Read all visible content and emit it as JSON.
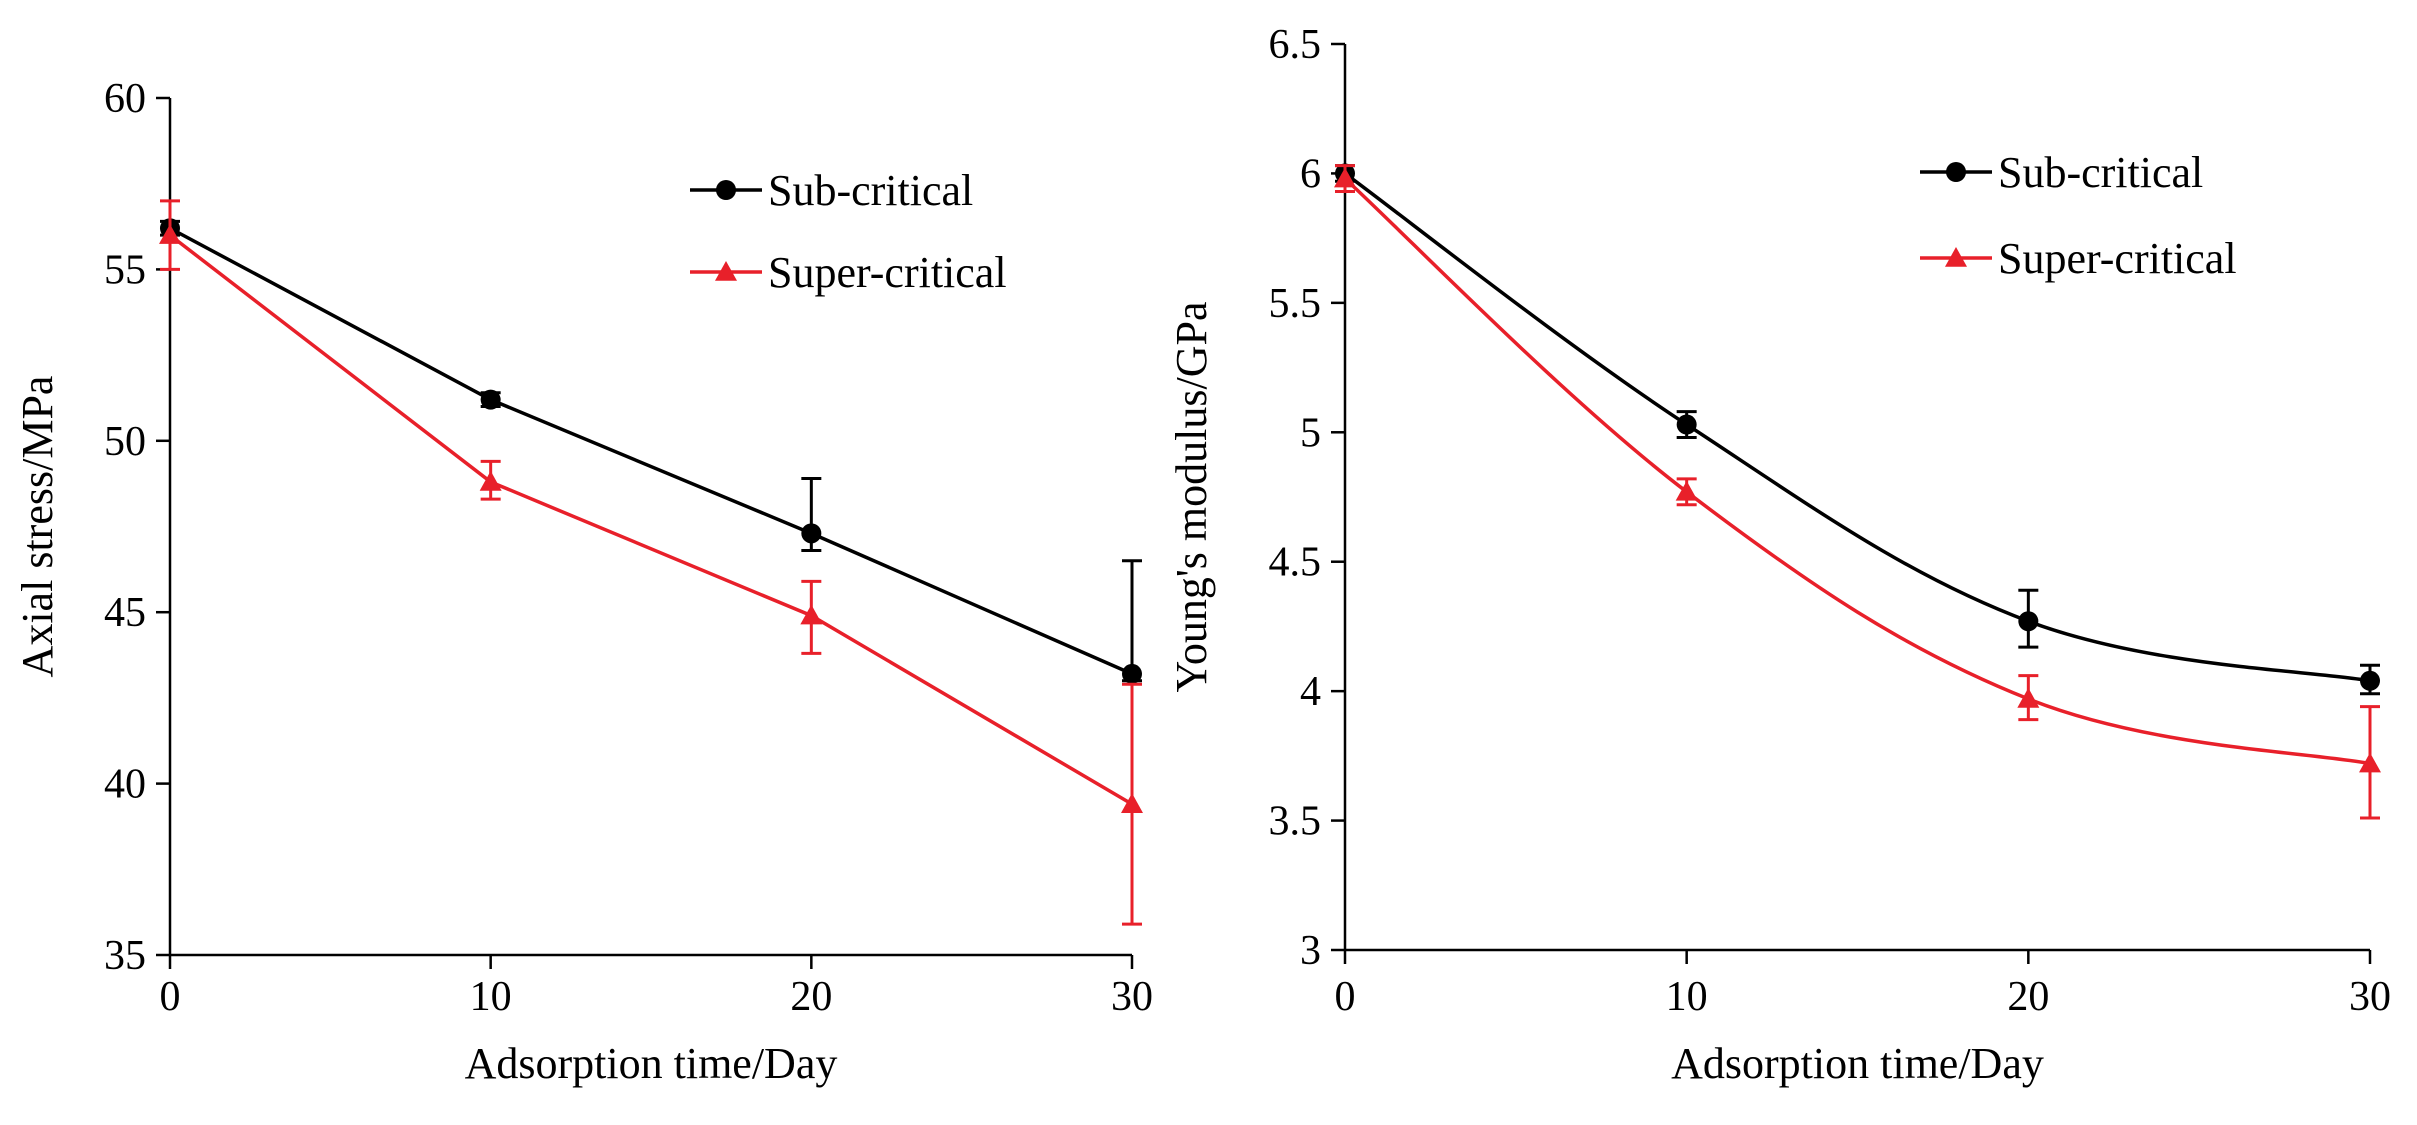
{
  "chart_data": [
    {
      "type": "line",
      "title": "",
      "xlabel": "Adsorption time/Day",
      "ylabel": "Axial stress/MPa",
      "x": [
        0,
        10,
        20,
        30
      ],
      "xticks": [
        0,
        10,
        20,
        30
      ],
      "xtick_labels": [
        "0",
        "10",
        "20",
        "30"
      ],
      "xlim": [
        0,
        30
      ],
      "ylim": [
        35,
        60
      ],
      "yticks": [
        35,
        40,
        45,
        50,
        55,
        60
      ],
      "ytick_labels": [
        "35",
        "40",
        "45",
        "50",
        "55",
        "60"
      ],
      "grid": false,
      "legend_position": "top-right",
      "curve": "linear",
      "series": [
        {
          "name": "Sub-critical",
          "color": "#000000",
          "marker": "circle",
          "values": [
            56.2,
            51.2,
            47.3,
            43.2
          ],
          "err_low": [
            0.2,
            0.2,
            0.5,
            0.2
          ],
          "err_high": [
            0.2,
            0.2,
            1.6,
            3.3
          ]
        },
        {
          "name": "Super-critical",
          "color": "#e8202a",
          "marker": "triangle",
          "values": [
            56.0,
            48.8,
            44.9,
            39.4
          ],
          "err_low": [
            1.0,
            0.5,
            1.1,
            3.5
          ],
          "err_high": [
            1.0,
            0.6,
            1.0,
            3.5
          ]
        }
      ]
    },
    {
      "type": "line",
      "title": "",
      "xlabel": "Adsorption time/Day",
      "ylabel": "Young's modulus/GPa",
      "x": [
        0,
        10,
        20,
        30
      ],
      "xticks": [
        0,
        10,
        20,
        30
      ],
      "xtick_labels": [
        "0",
        "10",
        "20",
        "30"
      ],
      "xlim": [
        0,
        30
      ],
      "ylim": [
        3,
        6.5
      ],
      "yticks": [
        3,
        3.5,
        4,
        4.5,
        5,
        5.5,
        6,
        6.5
      ],
      "ytick_labels": [
        "3",
        "3.5",
        "4",
        "4.5",
        "5",
        "5.5",
        "6",
        "6.5"
      ],
      "grid": false,
      "legend_position": "top-right",
      "curve": "smooth",
      "series": [
        {
          "name": "Sub-critical",
          "color": "#000000",
          "marker": "circle",
          "values": [
            6.0,
            5.03,
            4.27,
            4.04
          ],
          "err_low": [
            0.03,
            0.05,
            0.1,
            0.05
          ],
          "err_high": [
            0.03,
            0.05,
            0.12,
            0.06
          ]
        },
        {
          "name": "Super-critical",
          "color": "#e8202a",
          "marker": "triangle",
          "values": [
            5.98,
            4.77,
            3.97,
            3.72
          ],
          "err_low": [
            0.05,
            0.05,
            0.08,
            0.21
          ],
          "err_high": [
            0.05,
            0.05,
            0.09,
            0.22
          ]
        }
      ]
    }
  ]
}
